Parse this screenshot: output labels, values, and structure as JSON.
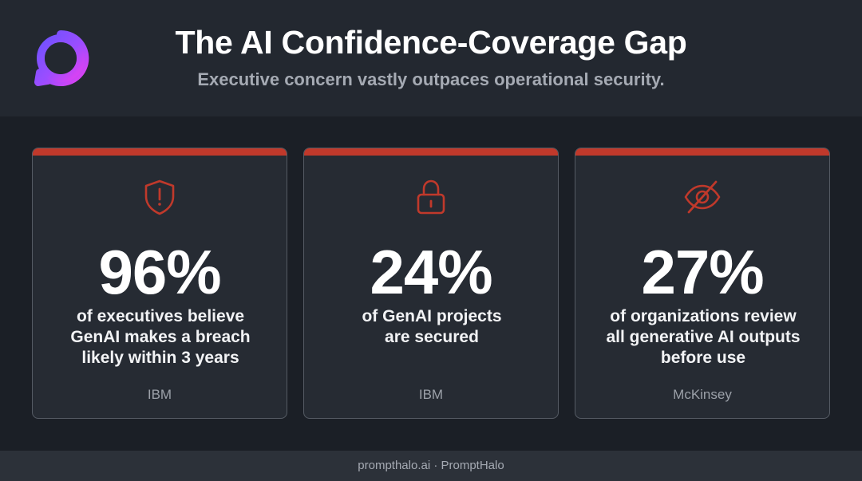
{
  "header": {
    "title": "The AI Confidence-Coverage Gap",
    "subtitle": "Executive concern vastly outpaces operational security."
  },
  "cards": [
    {
      "icon": "shield-alert-icon",
      "value": "96%",
      "desc_lines": [
        "of executives believe",
        "GenAI makes a breach",
        "likely within 3 years"
      ],
      "source": "IBM"
    },
    {
      "icon": "lock-icon",
      "value": "24%",
      "desc_lines": [
        "of GenAI projects",
        "are secured"
      ],
      "source": "IBM"
    },
    {
      "icon": "eye-off-icon",
      "value": "27%",
      "desc_lines": [
        "of organizations review",
        "all generative AI outputs",
        "before use"
      ],
      "source": "McKinsey"
    }
  ],
  "footer": {
    "text": "prompthalo.ai · PromptHalo"
  },
  "colors": {
    "accent": "#c0392b",
    "background": "#1b1f26",
    "card": "#262b33",
    "logo_gradient_start": "#7c4dff",
    "logo_gradient_end": "#e040fb"
  }
}
